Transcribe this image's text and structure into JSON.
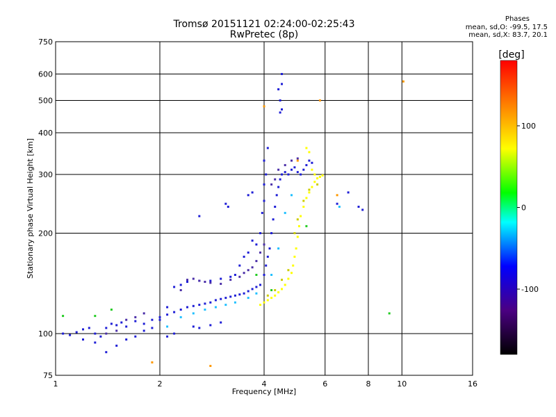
{
  "chart_data": {
    "type": "scatter",
    "title": "Tromsø 20151121 02:24:00-02:25:43",
    "subtitle": "RwPretec (8p)",
    "xlabel": "Frequency [MHz]",
    "ylabel": "Stationary phase Virtual Height [km]",
    "x_scale": "log",
    "y_scale": "log",
    "xlim": [
      1,
      16
    ],
    "ylim": [
      75,
      750
    ],
    "x_ticks": [
      "1",
      "2",
      "4",
      "6",
      "8",
      "10",
      "16"
    ],
    "x_tick_values": [
      1,
      2,
      4,
      6,
      8,
      10,
      16
    ],
    "y_ticks": [
      "75",
      "100",
      "200",
      "300",
      "400",
      "500",
      "600",
      "750"
    ],
    "y_tick_values": [
      75,
      100,
      200,
      300,
      400,
      500,
      600,
      750
    ],
    "grid": true,
    "phases_legend": {
      "title": "Phases",
      "line_o": "mean, sd,O: -99.5, 17.5",
      "line_x": "mean, sd,X:  83.7, 20.1"
    },
    "colorbar": {
      "label": "[deg]",
      "ticks": [
        "100",
        "0",
        "-100"
      ],
      "tick_values": [
        100,
        0,
        -100
      ],
      "range": [
        -180,
        180
      ],
      "colors": [
        "#000000",
        "#4b0082",
        "#0000ff",
        "#00ffff",
        "#00ff00",
        "#ffff00",
        "#ff8000",
        "#ff0000"
      ]
    },
    "series": [
      {
        "color": "#1f1fd6",
        "points": [
          [
            1.05,
            100
          ],
          [
            1.1,
            99
          ],
          [
            1.15,
            101
          ],
          [
            1.2,
            103
          ],
          [
            1.25,
            104
          ],
          [
            1.3,
            100
          ],
          [
            1.35,
            98
          ],
          [
            1.4,
            104
          ],
          [
            1.45,
            107
          ],
          [
            1.5,
            106
          ],
          [
            1.55,
            108
          ],
          [
            1.6,
            105
          ],
          [
            1.7,
            109
          ],
          [
            1.8,
            107
          ],
          [
            1.9,
            110
          ],
          [
            2.0,
            112
          ],
          [
            2.1,
            114
          ],
          [
            2.2,
            116
          ],
          [
            2.3,
            118
          ],
          [
            2.4,
            120
          ],
          [
            2.5,
            121
          ],
          [
            2.6,
            122
          ],
          [
            2.7,
            123
          ],
          [
            2.8,
            124
          ],
          [
            2.9,
            126
          ],
          [
            3.0,
            127
          ],
          [
            3.1,
            128
          ],
          [
            3.2,
            129
          ],
          [
            3.3,
            130
          ],
          [
            3.4,
            131
          ],
          [
            3.5,
            132
          ],
          [
            3.6,
            134
          ],
          [
            3.7,
            136
          ],
          [
            3.8,
            138
          ],
          [
            3.9,
            140
          ],
          [
            4.0,
            150
          ],
          [
            4.05,
            160
          ],
          [
            4.1,
            170
          ],
          [
            4.15,
            180
          ],
          [
            4.2,
            200
          ],
          [
            4.25,
            220
          ],
          [
            4.3,
            240
          ],
          [
            4.35,
            260
          ],
          [
            4.4,
            275
          ],
          [
            4.45,
            290
          ],
          [
            4.5,
            300
          ],
          [
            4.6,
            305
          ],
          [
            4.7,
            300
          ],
          [
            4.8,
            310
          ],
          [
            4.9,
            315
          ],
          [
            5.0,
            305
          ],
          [
            5.1,
            300
          ],
          [
            5.2,
            310
          ],
          [
            5.3,
            320
          ],
          [
            5.4,
            330
          ],
          [
            5.5,
            325
          ],
          [
            3.9,
            200
          ],
          [
            3.95,
            230
          ],
          [
            4.0,
            250
          ],
          [
            4.0,
            280
          ],
          [
            4.05,
            300
          ],
          [
            4.0,
            330
          ],
          [
            4.1,
            360
          ],
          [
            4.45,
            460
          ],
          [
            4.45,
            500
          ],
          [
            4.5,
            560
          ],
          [
            4.4,
            540
          ],
          [
            4.5,
            470
          ],
          [
            4.5,
            600
          ],
          [
            3.5,
            170
          ],
          [
            3.6,
            175
          ],
          [
            3.7,
            190
          ],
          [
            3.8,
            185
          ],
          [
            3.4,
            160
          ],
          [
            3.3,
            150
          ],
          [
            3.2,
            148
          ],
          [
            3.0,
            146
          ],
          [
            2.8,
            144
          ],
          [
            2.6,
            144
          ],
          [
            2.4,
            143
          ],
          [
            2.3,
            140
          ],
          [
            2.2,
            138
          ],
          [
            2.1,
            120
          ],
          [
            2.0,
            110
          ],
          [
            1.9,
            104
          ],
          [
            1.8,
            102
          ],
          [
            1.7,
            98
          ],
          [
            1.6,
            96
          ],
          [
            1.5,
            92
          ],
          [
            1.4,
            88
          ],
          [
            2.5,
            105
          ],
          [
            2.6,
            104
          ],
          [
            2.8,
            106
          ],
          [
            3.0,
            108
          ],
          [
            2.2,
            100
          ],
          [
            2.1,
            98
          ],
          [
            1.3,
            94
          ],
          [
            1.2,
            96
          ],
          [
            3.6,
            260
          ],
          [
            3.7,
            265
          ],
          [
            3.1,
            245
          ],
          [
            3.15,
            240
          ],
          [
            2.6,
            225
          ],
          [
            7.0,
            265
          ],
          [
            7.5,
            240
          ],
          [
            7.7,
            235
          ],
          [
            6.5,
            245
          ]
        ]
      },
      {
        "color": "#4b2fa8",
        "points": [
          [
            2.4,
            145
          ],
          [
            2.5,
            146
          ],
          [
            2.6,
            144
          ],
          [
            2.7,
            143
          ],
          [
            2.8,
            142
          ],
          [
            3.0,
            141
          ],
          [
            3.2,
            145
          ],
          [
            3.4,
            148
          ],
          [
            3.5,
            152
          ],
          [
            3.6,
            155
          ],
          [
            3.7,
            158
          ],
          [
            3.8,
            165
          ],
          [
            3.9,
            175
          ],
          [
            4.0,
            185
          ],
          [
            1.6,
            110
          ],
          [
            1.7,
            112
          ],
          [
            1.8,
            115
          ],
          [
            1.4,
            100
          ],
          [
            1.5,
            102
          ],
          [
            2.3,
            135
          ],
          [
            4.2,
            280
          ],
          [
            4.3,
            290
          ],
          [
            4.4,
            310
          ],
          [
            4.6,
            320
          ],
          [
            4.8,
            330
          ],
          [
            5.0,
            335
          ]
        ]
      },
      {
        "color": "#ffff00",
        "points": [
          [
            3.9,
            122
          ],
          [
            4.0,
            124
          ],
          [
            4.1,
            126
          ],
          [
            4.2,
            128
          ],
          [
            4.3,
            130
          ],
          [
            4.4,
            133
          ],
          [
            4.5,
            136
          ],
          [
            4.6,
            140
          ],
          [
            4.7,
            146
          ],
          [
            4.8,
            152
          ],
          [
            4.85,
            160
          ],
          [
            4.9,
            170
          ],
          [
            4.95,
            180
          ],
          [
            5.0,
            195
          ],
          [
            5.05,
            210
          ],
          [
            5.1,
            225
          ],
          [
            5.2,
            240
          ],
          [
            5.3,
            255
          ],
          [
            5.4,
            265
          ],
          [
            5.5,
            275
          ],
          [
            5.6,
            285
          ],
          [
            5.7,
            292
          ],
          [
            5.8,
            295
          ],
          [
            5.9,
            298
          ],
          [
            5.6,
            300
          ],
          [
            5.5,
            310
          ],
          [
            5.4,
            350
          ],
          [
            5.3,
            360
          ]
        ]
      },
      {
        "color": "#cccc00",
        "points": [
          [
            4.1,
            130
          ],
          [
            4.3,
            135
          ],
          [
            4.5,
            145
          ],
          [
            4.7,
            155
          ],
          [
            4.9,
            200
          ],
          [
            5.0,
            220
          ],
          [
            5.2,
            250
          ],
          [
            5.4,
            270
          ],
          [
            5.7,
            280
          ]
        ]
      },
      {
        "color": "#20c0ff",
        "points": [
          [
            2.1,
            105
          ],
          [
            2.3,
            112
          ],
          [
            2.5,
            115
          ],
          [
            2.7,
            118
          ],
          [
            2.9,
            120
          ],
          [
            3.1,
            122
          ],
          [
            3.3,
            124
          ],
          [
            3.6,
            128
          ],
          [
            3.8,
            132
          ],
          [
            4.2,
            150
          ],
          [
            4.4,
            180
          ],
          [
            4.6,
            230
          ],
          [
            4.8,
            260
          ],
          [
            6.6,
            240
          ]
        ]
      },
      {
        "color": "#ff9900",
        "points": [
          [
            5.8,
            500
          ],
          [
            4.0,
            480
          ],
          [
            6.5,
            260
          ],
          [
            5.0,
            330
          ],
          [
            10.1,
            570
          ],
          [
            1.9,
            82
          ],
          [
            2.8,
            80
          ]
        ]
      },
      {
        "color": "#22cc22",
        "points": [
          [
            1.05,
            113
          ],
          [
            1.3,
            113
          ],
          [
            1.45,
            118
          ],
          [
            3.8,
            150
          ],
          [
            4.2,
            135
          ],
          [
            5.3,
            210
          ],
          [
            9.2,
            115
          ]
        ]
      }
    ]
  }
}
